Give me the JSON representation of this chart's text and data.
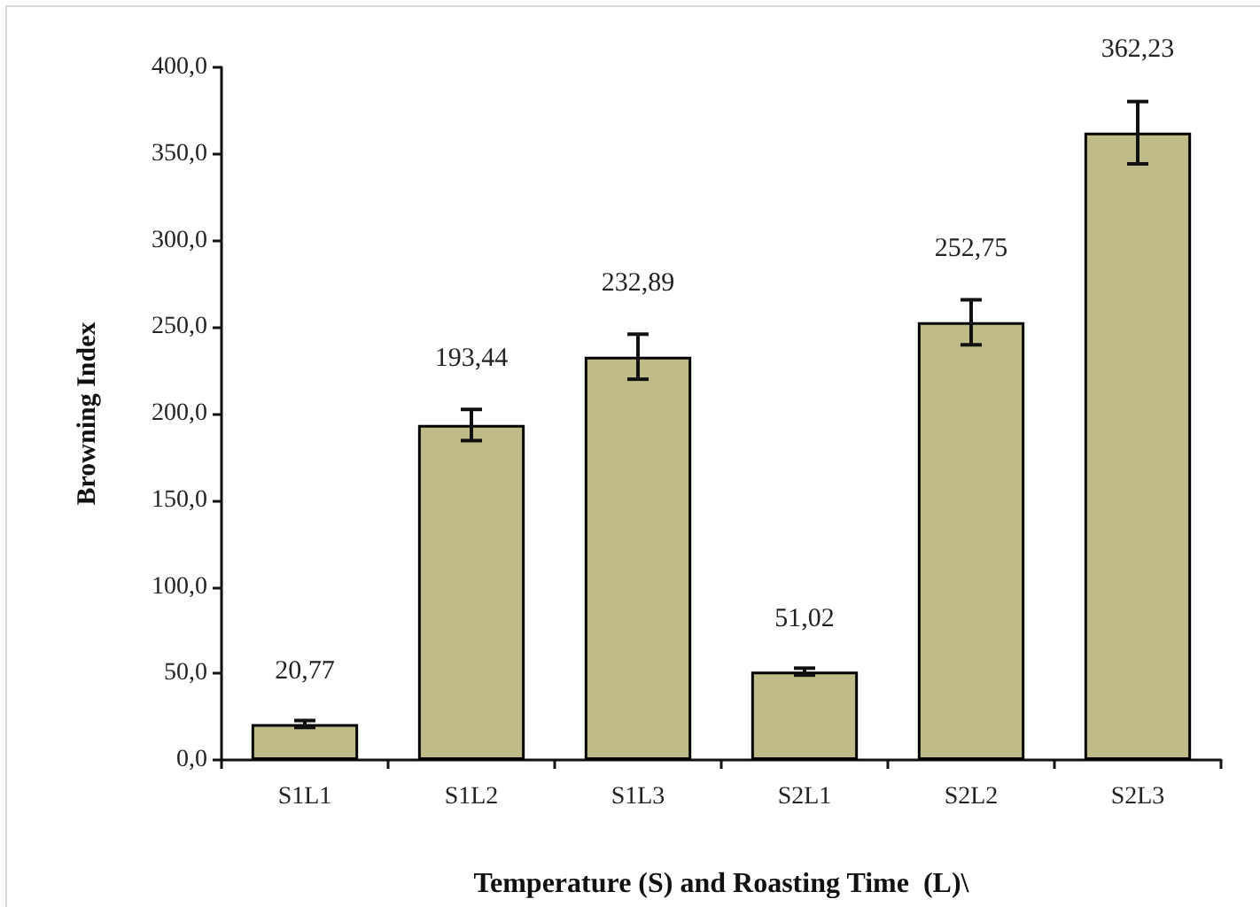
{
  "chart_data": {
    "type": "bar",
    "xlabel": "Temperature (S) and Roasting Time  (L)\\",
    "ylabel": "Browning Index",
    "categories": [
      "S1L1",
      "S1L2",
      "S1L3",
      "S2L1",
      "S2L2",
      "S2L3"
    ],
    "values": [
      20.77,
      193.44,
      232.89,
      51.02,
      252.75,
      362.23
    ],
    "value_labels": [
      "20,77",
      "193,44",
      "232,89",
      "51,02",
      "252,75",
      "362,23"
    ],
    "errors": [
      2,
      9,
      13,
      2,
      13,
      18
    ],
    "color": "#bfbc8a",
    "ylim": [
      0,
      400
    ],
    "yticks": [
      {
        "value": 0,
        "label": "0,0"
      },
      {
        "value": 50,
        "label": "50,0"
      },
      {
        "value": 100,
        "label": "100,0"
      },
      {
        "value": 150,
        "label": "150,0"
      },
      {
        "value": 200,
        "label": "200,0"
      },
      {
        "value": 250,
        "label": "250,0"
      },
      {
        "value": 300,
        "label": "300,0"
      },
      {
        "value": 350,
        "label": "350,0"
      },
      {
        "value": 400,
        "label": "400,0"
      }
    ],
    "grid": false
  }
}
